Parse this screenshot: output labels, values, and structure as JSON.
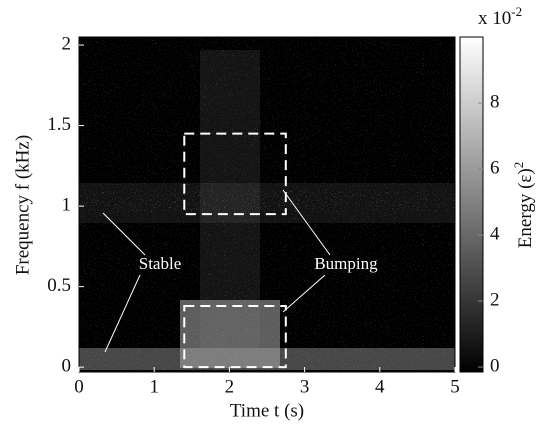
{
  "chart_data": {
    "type": "spectrogram",
    "xlabel": "Time t (s)",
    "ylabel": "Frequency f (kHz)",
    "xlim": [
      0,
      5
    ],
    "xticks": [
      0,
      1,
      2,
      3,
      4,
      5
    ],
    "ylim": [
      -0.03,
      2.05
    ],
    "yticks": [
      0,
      0.5,
      1,
      1.5,
      2
    ],
    "colorbar": {
      "label": "Energy (ε)",
      "label_exponent": "2",
      "multiplier": "x 10",
      "multiplier_exponent": "-2",
      "clim": [
        -0.15,
        10
      ],
      "ticks": [
        0,
        2,
        4,
        6,
        8
      ]
    },
    "boxes": [
      {
        "x": [
          1.4,
          2.75
        ],
        "y": [
          0.95,
          1.45
        ]
      },
      {
        "x": [
          1.4,
          2.75
        ],
        "y": [
          0,
          0.38
        ]
      }
    ],
    "annotations": [
      "Stable",
      "Bumping"
    ]
  }
}
